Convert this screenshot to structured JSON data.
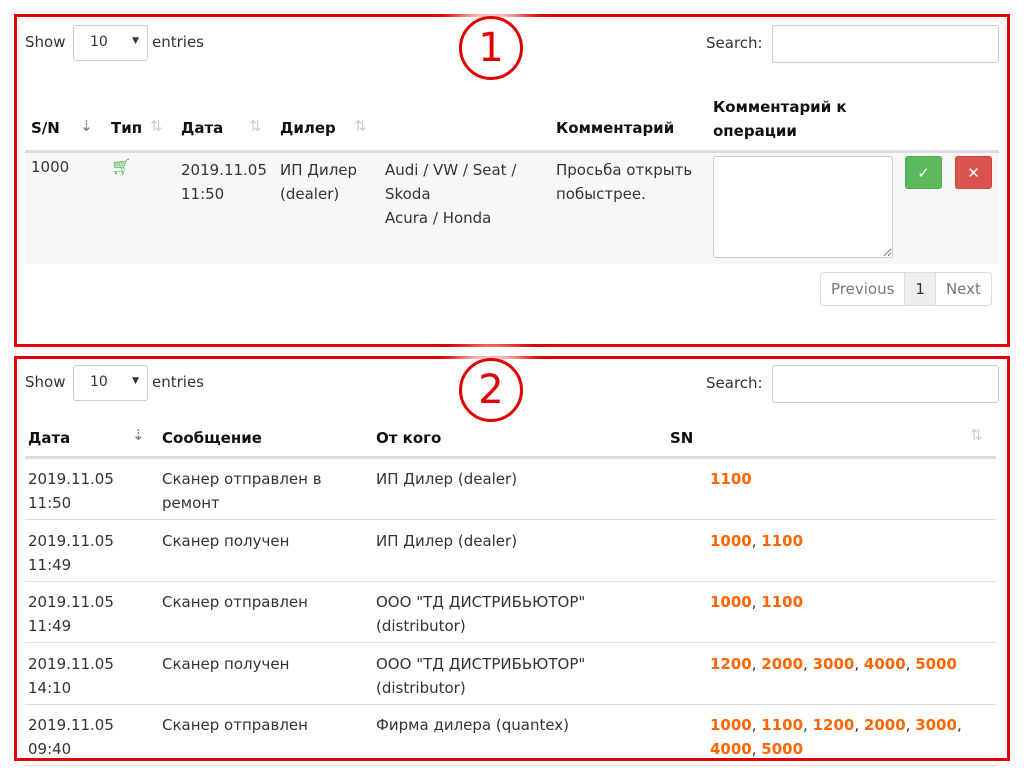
{
  "section1": {
    "badge": "1",
    "show_label": "Show",
    "entries_label": "entries",
    "page_length": "10",
    "search_label": "Search:",
    "headers": {
      "sn": "S/N",
      "type": "Тип",
      "date": "Дата",
      "dealer": "Дилер",
      "comment": "Комментарий",
      "op_comment": "Комментарий к операции"
    },
    "row": {
      "sn": "1000",
      "type_icon": "cart-icon",
      "date": "2019.11.05 11:50",
      "dealer": "ИП Дилер (dealer)",
      "brands1": "Audi / VW / Seat / Skoda",
      "brands2": "Acura / Honda",
      "comment": "Просьба открыть побыстрее.",
      "approve_color": "#5cb85c",
      "reject_color": "#d9534f"
    },
    "pagination": {
      "previous": "Previous",
      "page": "1",
      "next": "Next"
    }
  },
  "section2": {
    "badge": "2",
    "show_label": "Show",
    "entries_label": "entries",
    "page_length": "10",
    "search_label": "Search:",
    "headers": {
      "date": "Дата",
      "message": "Сообщение",
      "from": "От кого",
      "sn": "SN"
    },
    "rows": [
      {
        "date": "2019.11.05 11:50",
        "message": "Сканер отправлен в ремонт",
        "from": "ИП Дилер (dealer)",
        "sn": [
          "1100"
        ]
      },
      {
        "date": "2019.11.05 11:49",
        "message": "Сканер получен",
        "from": "ИП Дилер (dealer)",
        "sn": [
          "1000",
          "1100"
        ]
      },
      {
        "date": "2019.11.05 11:49",
        "message": "Сканер отправлен",
        "from": "ООО \"ТД ДИСТРИБЬЮТОР\" (distributor)",
        "sn": [
          "1000",
          "1100"
        ]
      },
      {
        "date": "2019.11.05 14:10",
        "message": "Сканер получен",
        "from": "ООО \"ТД ДИСТРИБЬЮТОР\" (distributor)",
        "sn": [
          "1200",
          "2000",
          "3000",
          "4000",
          "5000"
        ]
      },
      {
        "date": "2019.11.05 09:40",
        "message": "Сканер отправлен",
        "from": "Фирма дилера (quantex)",
        "sn": [
          "1000",
          "1100",
          "1200",
          "2000",
          "3000",
          "4000",
          "5000"
        ]
      }
    ]
  },
  "colors": {
    "highlight": "#e00000",
    "sn_link": "#ff6600"
  }
}
